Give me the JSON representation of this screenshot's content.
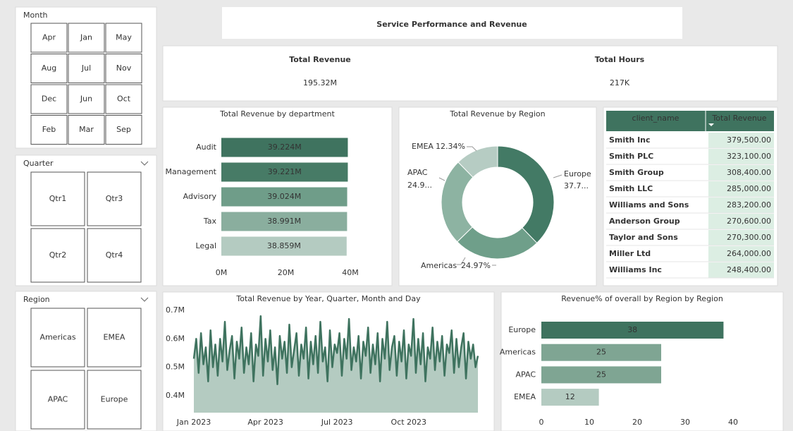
{
  "header": {
    "title": "Service Performance and Revenue"
  },
  "slicers": {
    "month": {
      "title": "Month",
      "items": [
        "Apr",
        "Jan",
        "May",
        "Aug",
        "Jul",
        "Nov",
        "Dec",
        "Jun",
        "Oct",
        "Feb",
        "Mar",
        "Sep"
      ]
    },
    "quarter": {
      "title": "Quarter",
      "items": [
        "Qtr1",
        "Qtr3",
        "Qtr2",
        "Qtr4"
      ]
    },
    "region": {
      "title": "Region",
      "items": [
        "Americas",
        "EMEA",
        "APAC",
        "Europe"
      ]
    }
  },
  "kpis": [
    {
      "label": "Total Revenue",
      "value": "195.32M"
    },
    {
      "label": "Total Hours",
      "value": "217K"
    }
  ],
  "table": {
    "columns": [
      "client_name",
      "Total Revenue"
    ],
    "rows": [
      [
        "Smith Inc",
        "379,500.00"
      ],
      [
        "Smith PLC",
        "323,100.00"
      ],
      [
        "Smith Group",
        "308,400.00"
      ],
      [
        "Smith LLC",
        "285,000.00"
      ],
      [
        "Williams and Sons",
        "283,200.00"
      ],
      [
        "Anderson Group",
        "270,600.00"
      ],
      [
        "Taylor and Sons",
        "270,300.00"
      ],
      [
        "Miller Ltd",
        "264,000.00"
      ],
      [
        "Williams Inc",
        "248,400.00"
      ]
    ]
  },
  "chart_data": [
    {
      "type": "hbar",
      "title": "Total Revenue by department",
      "categories": [
        "Audit",
        "Management",
        "Advisory",
        "Tax",
        "Legal"
      ],
      "values": [
        39.224,
        39.221,
        39.024,
        38.991,
        38.859
      ],
      "value_labels": [
        "39.224M",
        "39.221M",
        "39.024M",
        "38.991M",
        "38.859M"
      ],
      "colors": [
        "#3f735f",
        "#477b66",
        "#6f9d89",
        "#8aae9e",
        "#b4cbc1"
      ],
      "xlim": [
        0,
        40
      ],
      "xticks": [
        {
          "value": 0,
          "label": "0M"
        },
        {
          "value": 20,
          "label": "20M"
        },
        {
          "value": 40,
          "label": "40M"
        }
      ]
    },
    {
      "type": "donut",
      "title": "Total Revenue by Region",
      "categories": [
        "Europe",
        "Americas",
        "APAC",
        "EMEA"
      ],
      "values": [
        37.75,
        24.97,
        24.94,
        12.34
      ],
      "value_labels": [
        "37.7...",
        "24.97%",
        "24.9...",
        "12.34%"
      ],
      "colors": [
        "#437a65",
        "#6f9f8a",
        "#8db3a2",
        "#b6ccc3"
      ]
    },
    {
      "type": "area",
      "title": "Total Revenue by Year, Quarter, Month and Day",
      "color": "#3f735f",
      "fill": "#b4cbc1",
      "xlim": [
        0,
        119
      ],
      "xticks": [
        {
          "value": 0,
          "label": "Jan 2023"
        },
        {
          "value": 30,
          "label": "Apr 2023"
        },
        {
          "value": 60,
          "label": "Jul 2023"
        },
        {
          "value": 90,
          "label": "Oct 2023"
        }
      ],
      "ylim": [
        0.34,
        0.72
      ],
      "yticks": [
        {
          "value": 0.4,
          "label": "0.4M"
        },
        {
          "value": 0.5,
          "label": "0.5M"
        },
        {
          "value": 0.6,
          "label": "0.6M"
        },
        {
          "value": 0.7,
          "label": "0.7M"
        }
      ],
      "values": [
        0.53,
        0.6,
        0.48,
        0.62,
        0.51,
        0.57,
        0.45,
        0.63,
        0.5,
        0.58,
        0.47,
        0.6,
        0.52,
        0.66,
        0.49,
        0.56,
        0.61,
        0.46,
        0.59,
        0.53,
        0.64,
        0.48,
        0.57,
        0.51,
        0.62,
        0.45,
        0.58,
        0.54,
        0.68,
        0.47,
        0.6,
        0.52,
        0.63,
        0.49,
        0.57,
        0.44,
        0.61,
        0.53,
        0.59,
        0.48,
        0.65,
        0.5,
        0.56,
        0.62,
        0.47,
        0.58,
        0.53,
        0.64,
        0.46,
        0.59,
        0.51,
        0.61,
        0.48,
        0.66,
        0.52,
        0.57,
        0.45,
        0.63,
        0.5,
        0.58,
        0.55,
        0.62,
        0.47,
        0.6,
        0.53,
        0.67,
        0.49,
        0.57,
        0.52,
        0.61,
        0.46,
        0.59,
        0.54,
        0.64,
        0.48,
        0.58,
        0.51,
        0.62,
        0.45,
        0.6,
        0.53,
        0.66,
        0.49,
        0.57,
        0.61,
        0.47,
        0.59,
        0.52,
        0.63,
        0.46,
        0.58,
        0.54,
        0.67,
        0.48,
        0.6,
        0.51,
        0.62,
        0.45,
        0.57,
        0.53,
        0.64,
        0.49,
        0.59,
        0.52,
        0.61,
        0.47,
        0.58,
        0.55,
        0.63,
        0.48,
        0.6,
        0.5,
        0.57,
        0.62,
        0.46,
        0.59,
        0.53,
        0.58,
        0.5,
        0.54
      ]
    },
    {
      "type": "hbar",
      "title": "Revenue% of overall by Region by Region",
      "categories": [
        "Europe",
        "Americas",
        "APAC",
        "EMEA"
      ],
      "values": [
        38,
        25,
        25,
        12
      ],
      "colors": [
        "#3f735f",
        "#7fa593",
        "#7fa593",
        "#b4cbc1"
      ],
      "xlim": [
        0,
        40
      ],
      "xticks": [
        0,
        10,
        20,
        30,
        40
      ]
    }
  ]
}
